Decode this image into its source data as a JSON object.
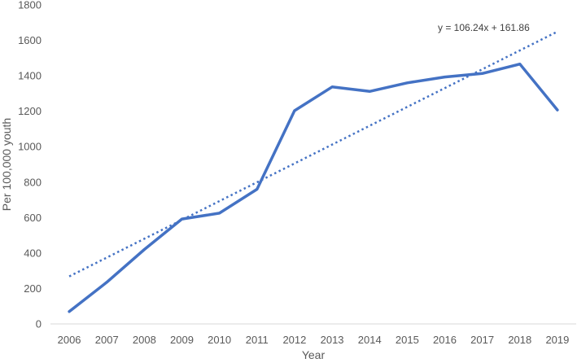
{
  "chart_data": {
    "type": "line",
    "title": "",
    "xlabel": "Year",
    "ylabel": "Per 100,000 youth",
    "x": [
      "2006",
      "2007",
      "2008",
      "2009",
      "2010",
      "2011",
      "2012",
      "2013",
      "2014",
      "2015",
      "2016",
      "2017",
      "2018",
      "2019"
    ],
    "series": [
      {
        "values": [
          70,
          235,
          420,
          592,
          625,
          760,
          1203,
          1337,
          1312,
          1360,
          1393,
          1413,
          1466,
          1207
        ],
        "color": "#4472C4"
      }
    ],
    "trendline": {
      "equation": "y = 106.24x + 161.86",
      "slope": 106.24,
      "intercept": 161.86,
      "style": "dotted",
      "color": "#4472C4"
    },
    "ylim": [
      0,
      1800
    ],
    "yticks": [
      0,
      200,
      400,
      600,
      800,
      1000,
      1200,
      1400,
      1600,
      1800
    ],
    "grid": false,
    "legend": "none"
  }
}
